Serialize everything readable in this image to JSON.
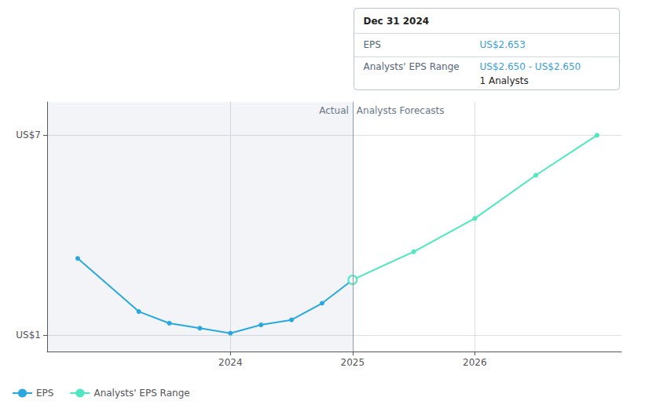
{
  "chart_data": {
    "type": "line",
    "series": [
      {
        "name": "EPS",
        "color": "#29a8e0",
        "x": [
          2022.75,
          2023.25,
          2023.5,
          2023.75,
          2024.0,
          2024.25,
          2024.5,
          2024.75,
          2025.0
        ],
        "values": [
          3.3,
          1.7,
          1.35,
          1.2,
          1.05,
          1.3,
          1.45,
          1.95,
          2.653
        ]
      },
      {
        "name": "Analysts' EPS Range",
        "color": "#4de8c0",
        "x": [
          2025.0,
          2025.5,
          2026.0,
          2026.5,
          2027.0
        ],
        "values": [
          2.653,
          3.5,
          4.5,
          5.8,
          7.0
        ]
      }
    ],
    "marker": "circle",
    "xlim": [
      2022.5,
      2027.2
    ],
    "xticks": [
      2024,
      2025,
      2026
    ],
    "ylim": [
      0.5,
      8.0
    ],
    "yticks": [
      {
        "value": 1,
        "label": "US$1"
      },
      {
        "value": 7,
        "label": "US$7"
      }
    ],
    "grid": true,
    "legend": "lower left",
    "divider_x": 2025.0,
    "sections": [
      "Actual",
      "Analysts Forecasts"
    ],
    "tooltip": {
      "title": "Dec 31 2024",
      "color": "#3a9fd8",
      "rows": [
        {
          "label": "EPS",
          "value": "US$2.653"
        },
        {
          "label": "Analysts' EPS Range",
          "value": "US$2.650 - US$2.650",
          "note": "1 Analysts"
        }
      ]
    }
  }
}
